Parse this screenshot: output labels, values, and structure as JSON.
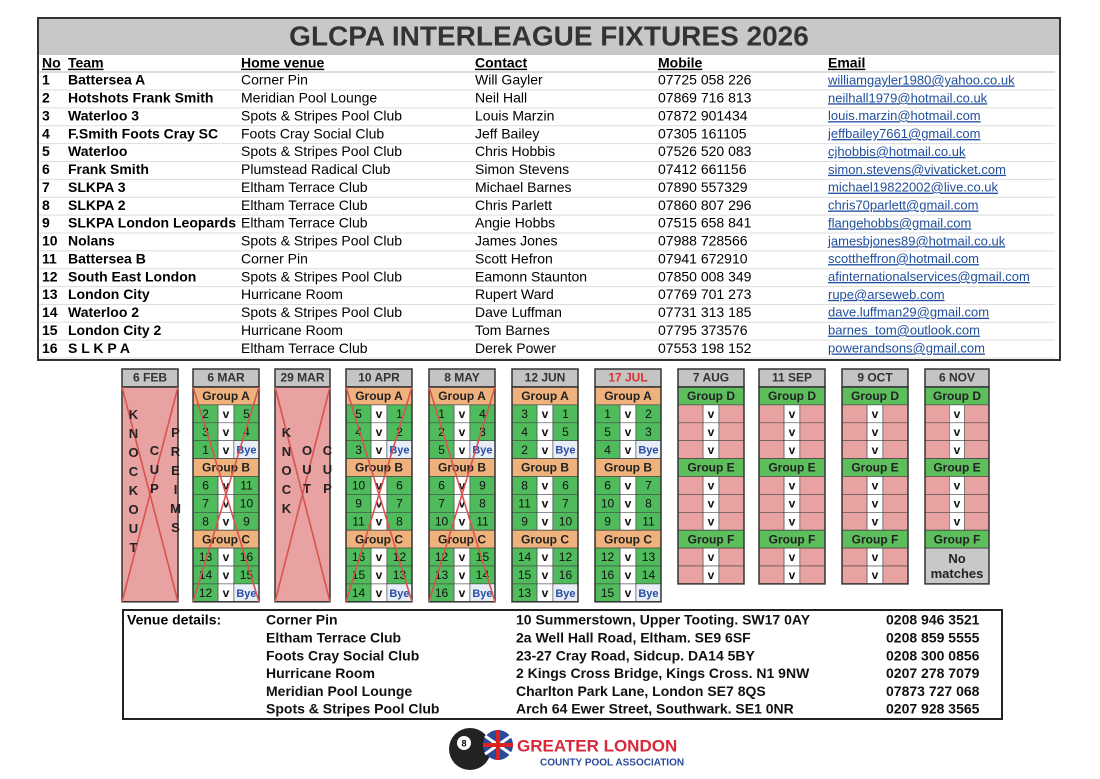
{
  "title": "GLCPA INTERLEAGUE FIXTURES 2026",
  "table": {
    "headers": [
      "No",
      "Team",
      "Home venue",
      "Contact",
      "Mobile",
      "Email"
    ],
    "rows": [
      [
        1,
        "Battersea A",
        "Corner Pin",
        "Will Gayler",
        "07725 058 226",
        "williamgayler1980@yahoo.co.uk"
      ],
      [
        2,
        "Hotshots Frank Smith",
        "Meridian Pool Lounge",
        "Neil Hall",
        "07869 716 813",
        "neilhall1979@hotmail.co.uk"
      ],
      [
        3,
        "Waterloo 3",
        "Spots & Stripes Pool Club",
        "Louis Marzin",
        "07872 901434",
        "louis.marzin@hotmail.com"
      ],
      [
        4,
        "F.Smith Foots Cray SC",
        "Foots Cray Social Club",
        "Jeff Bailey",
        "07305 161105",
        "jeffbailey7661@gmail.com"
      ],
      [
        5,
        "Waterloo",
        "Spots & Stripes Pool Club",
        "Chris Hobbis",
        "07526 520 083",
        "cjhobbis@hotmail.co.uk"
      ],
      [
        6,
        "Frank Smith",
        "Plumstead Radical Club",
        "Simon Stevens",
        "07412 661156",
        "simon.stevens@vivaticket.com"
      ],
      [
        7,
        "SLKPA 3",
        "Eltham Terrace Club",
        "Michael Barnes",
        "07890 557329",
        "michael19822002@live.co.uk"
      ],
      [
        8,
        "SLKPA 2",
        "Eltham Terrace Club",
        "Chris Parlett",
        "07860 807 296",
        "chris70parlett@gmail.com"
      ],
      [
        9,
        "SLKPA London Leopards",
        "Eltham Terrace Club",
        "Angie Hobbs",
        "07515 658 841",
        "flangehobbs@gmail.com"
      ],
      [
        10,
        "Nolans",
        "Spots & Stripes Pool Club",
        "James Jones",
        "07988 728566",
        "jamesbjones89@hotmail.co.uk"
      ],
      [
        11,
        "Battersea B",
        "Corner Pin",
        "Scott Hefron",
        "07941 672910",
        "scottheffron@hotmail.com"
      ],
      [
        12,
        "South East London",
        "Spots & Stripes Pool Club",
        "Eamonn Staunton",
        "07850 008 349",
        "afinternationalservices@gmail.com"
      ],
      [
        13,
        "London City",
        "Hurricane Room",
        "Rupert Ward",
        "07769 701 273",
        "rupe@arseweb.com"
      ],
      [
        14,
        "Waterloo 2",
        "Spots & Stripes Pool Club",
        "Dave Luffman",
        "07731 313 185",
        "dave.luffman29@gmail.com"
      ],
      [
        15,
        "London City 2",
        "Hurricane Room",
        "Tom Barnes",
        "07795 373576",
        "barnes_tom@outlook.com"
      ],
      [
        16,
        "S L K P A",
        "Eltham Terrace Club",
        "Derek Power",
        "07553 198 152",
        "powerandsons@gmail.com"
      ]
    ]
  },
  "fixtures": [
    {
      "date": "6 FEB",
      "crossed": true,
      "vertical_text": [
        "KNOCKOUT",
        "CUP",
        "PREIMS"
      ]
    },
    {
      "date": "6 MAR",
      "crossed": true,
      "groups": [
        {
          "name": "Group A",
          "matches": [
            [
              2,
              "v",
              5
            ],
            [
              3,
              "v",
              4
            ],
            [
              1,
              "v",
              "Bye"
            ]
          ]
        },
        {
          "name": "Group B",
          "matches": [
            [
              6,
              "v",
              11
            ],
            [
              7,
              "v",
              10
            ],
            [
              8,
              "v",
              9
            ]
          ]
        },
        {
          "name": "Group C",
          "matches": [
            [
              13,
              "v",
              16
            ],
            [
              14,
              "v",
              15
            ],
            [
              12,
              "v",
              "Bye"
            ]
          ]
        }
      ]
    },
    {
      "date": "29 MAR",
      "crossed": true,
      "vertical_text": [
        "KNOCK",
        "OUT",
        "CUP"
      ]
    },
    {
      "date": "10 APR",
      "crossed": true,
      "groups": [
        {
          "name": "Group A",
          "matches": [
            [
              5,
              "v",
              1
            ],
            [
              4,
              "v",
              2
            ],
            [
              3,
              "v",
              "Bye"
            ]
          ]
        },
        {
          "name": "Group B",
          "matches": [
            [
              10,
              "v",
              6
            ],
            [
              9,
              "v",
              7
            ],
            [
              11,
              "v",
              8
            ]
          ]
        },
        {
          "name": "Group C",
          "matches": [
            [
              16,
              "v",
              12
            ],
            [
              15,
              "v",
              13
            ],
            [
              14,
              "v",
              "Bye"
            ]
          ]
        }
      ]
    },
    {
      "date": "8 MAY",
      "crossed": true,
      "groups": [
        {
          "name": "Group A",
          "matches": [
            [
              1,
              "v",
              4
            ],
            [
              2,
              "v",
              3
            ],
            [
              5,
              "v",
              "Bye"
            ]
          ]
        },
        {
          "name": "Group B",
          "matches": [
            [
              6,
              "v",
              9
            ],
            [
              7,
              "v",
              8
            ],
            [
              10,
              "v",
              11
            ]
          ]
        },
        {
          "name": "Group C",
          "matches": [
            [
              12,
              "v",
              15
            ],
            [
              13,
              "v",
              14
            ],
            [
              16,
              "v",
              "Bye"
            ]
          ]
        }
      ]
    },
    {
      "date": "12 JUN",
      "groups": [
        {
          "name": "Group A",
          "matches": [
            [
              3,
              "v",
              1
            ],
            [
              4,
              "v",
              5
            ],
            [
              2,
              "v",
              "Bye"
            ]
          ]
        },
        {
          "name": "Group B",
          "matches": [
            [
              8,
              "v",
              6
            ],
            [
              11,
              "v",
              7
            ],
            [
              9,
              "v",
              10
            ]
          ]
        },
        {
          "name": "Group C",
          "matches": [
            [
              14,
              "v",
              12
            ],
            [
              15,
              "v",
              16
            ],
            [
              13,
              "v",
              "Bye"
            ]
          ]
        }
      ]
    },
    {
      "date": "17 JUL",
      "date_color": "#e03030",
      "groups": [
        {
          "name": "Group A",
          "matches": [
            [
              1,
              "v",
              2
            ],
            [
              5,
              "v",
              3
            ],
            [
              4,
              "v",
              "Bye"
            ]
          ]
        },
        {
          "name": "Group B",
          "matches": [
            [
              6,
              "v",
              7
            ],
            [
              10,
              "v",
              8
            ],
            [
              9,
              "v",
              11
            ]
          ]
        },
        {
          "name": "Group C",
          "matches": [
            [
              12,
              "v",
              13
            ],
            [
              16,
              "v",
              14
            ],
            [
              15,
              "v",
              "Bye"
            ]
          ]
        }
      ]
    },
    {
      "date": "7 AUG",
      "groups": [
        {
          "name": "Group D",
          "matches": [
            [
              "v"
            ],
            [
              "v"
            ],
            [
              "v"
            ]
          ]
        },
        {
          "name": "Group E",
          "matches": [
            [
              "v"
            ],
            [
              "v"
            ],
            [
              "v"
            ]
          ]
        },
        {
          "name": "Group F",
          "matches": [
            [
              "v"
            ],
            [
              "v"
            ]
          ]
        }
      ]
    },
    {
      "date": "11 SEP",
      "groups": [
        {
          "name": "Group D",
          "matches": [
            [
              "v"
            ],
            [
              "v"
            ],
            [
              "v"
            ]
          ]
        },
        {
          "name": "Group E",
          "matches": [
            [
              "v"
            ],
            [
              "v"
            ],
            [
              "v"
            ]
          ]
        },
        {
          "name": "Group F",
          "matches": [
            [
              "v"
            ],
            [
              "v"
            ]
          ]
        }
      ]
    },
    {
      "date": "9 OCT",
      "groups": [
        {
          "name": "Group D",
          "matches": [
            [
              "v"
            ],
            [
              "v"
            ],
            [
              "v"
            ]
          ]
        },
        {
          "name": "Group E",
          "matches": [
            [
              "v"
            ],
            [
              "v"
            ],
            [
              "v"
            ]
          ]
        },
        {
          "name": "Group F",
          "matches": [
            [
              "v"
            ],
            [
              "v"
            ]
          ]
        }
      ]
    },
    {
      "date": "6 NOV",
      "groups": [
        {
          "name": "Group D",
          "matches": [
            [
              "v"
            ],
            [
              "v"
            ],
            [
              "v"
            ]
          ]
        },
        {
          "name": "Group E",
          "matches": [
            [
              "v"
            ],
            [
              "v"
            ],
            [
              "v"
            ]
          ]
        },
        {
          "name": "Group F",
          "matches": [],
          "note": "No matches"
        }
      ]
    }
  ],
  "venues": {
    "label": "Venue details:",
    "rows": [
      [
        "Corner Pin",
        "10 Summerstown, Upper Tooting. SW17 0AY",
        "0208 946 3521"
      ],
      [
        "Eltham Terrace Club",
        "2a Well Hall Road, Eltham. SE9 6SF",
        "0208 859 5555"
      ],
      [
        "Foots Cray Social Club",
        "23-27 Cray Road, Sidcup. DA14 5BY",
        "0208 300 0856"
      ],
      [
        "Hurricane Room",
        "2 Kings Cross Bridge, Kings Cross. N1 9NW",
        "0207 278 7079"
      ],
      [
        "Meridian Pool Lounge",
        "Charlton Park Lane, London SE7 8QS",
        "07873 727 068"
      ],
      [
        "Spots & Stripes Pool Club",
        "Arch 64 Ewer Street, Southwark. SE1 0NR",
        "0207 928 3565"
      ]
    ]
  },
  "logo": {
    "ball": "8",
    "title": "GREATER LONDON",
    "subtitle": "COUNTY POOL ASSOCIATION"
  }
}
